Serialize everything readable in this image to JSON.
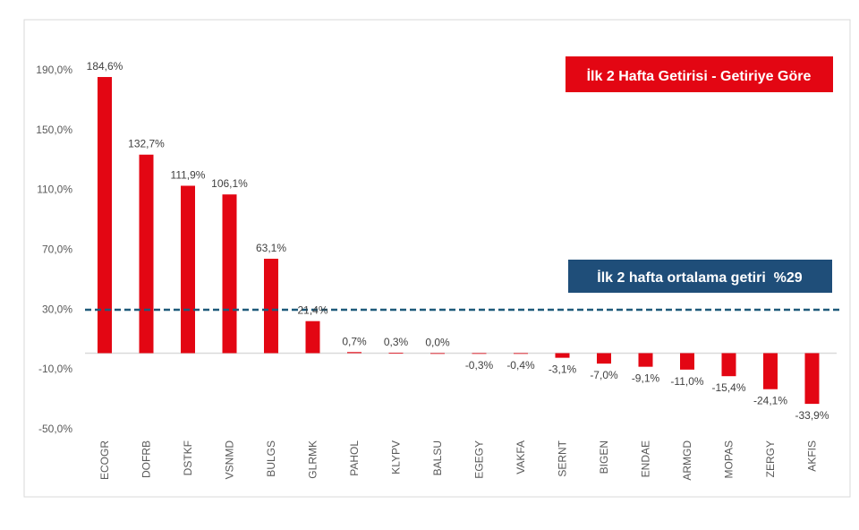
{
  "chart_data": {
    "type": "bar",
    "title": "İlk 2 Hafta Getirisi - Getiriye Göre",
    "average_label": "İlk 2 hafta ortalama getiri  %29",
    "average_value": 29,
    "categories": [
      "ECOGR",
      "DOFRB",
      "DSTKF",
      "VSNMD",
      "BULGS",
      "GLRMK",
      "PAHOL",
      "KLYPV",
      "BALSU",
      "EGEGY",
      "VAKFA",
      "SERNT",
      "BIGEN",
      "ENDAE",
      "ARMGD",
      "MOPAS",
      "ZERGY",
      "AKFIS"
    ],
    "values": [
      184.6,
      132.7,
      111.9,
      106.1,
      63.1,
      21.4,
      0.7,
      0.3,
      0.0,
      -0.3,
      -0.4,
      -3.1,
      -7.0,
      -9.1,
      -11.0,
      -15.4,
      -24.1,
      -33.9
    ],
    "value_labels": [
      "184,6%",
      "132,7%",
      "111,9%",
      "106,1%",
      "63,1%",
      "21,4%",
      "0,7%",
      "0,3%",
      "0,0%",
      "-0,3%",
      "-0,4%",
      "-3,1%",
      "-7,0%",
      "-9,1%",
      "-11,0%",
      "-15,4%",
      "-24,1%",
      "-33,9%"
    ],
    "yticks": [
      190,
      150,
      110,
      70,
      30,
      -10,
      -50
    ],
    "ytick_labels": [
      "190,0%",
      "150,0%",
      "110,0%",
      "70,0%",
      "30,0%",
      "-10,0%",
      "-50,0%"
    ],
    "ylim": [
      -50,
      190
    ],
    "xlabel": "",
    "ylabel": "",
    "grid": false,
    "colors": {
      "bar": "#e30613",
      "title_box": "#e30613",
      "average_box": "#1f4e79",
      "average_line": "#1f5a7a"
    }
  }
}
